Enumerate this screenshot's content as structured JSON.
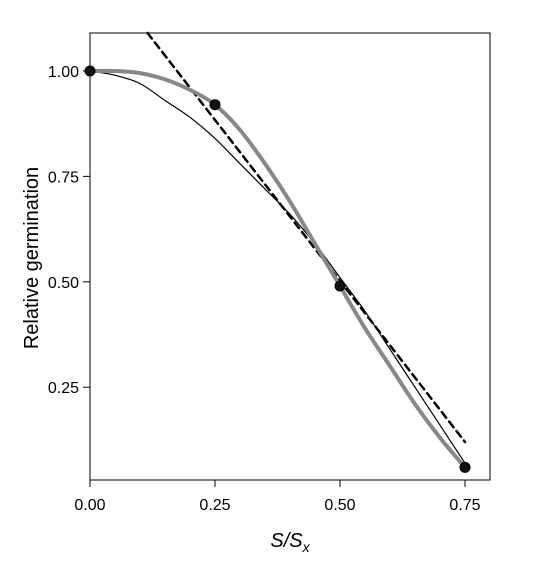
{
  "chart_data": {
    "type": "line",
    "xlabel": "S/S",
    "xlabel_subscript": "x",
    "ylabel": "Relative germination",
    "xlim": [
      0,
      0.8
    ],
    "ylim": [
      0.03,
      1.09
    ],
    "xticks": [
      0.0,
      0.25,
      0.5,
      0.75
    ],
    "xtick_labels": [
      "0.00",
      "0.25",
      "0.50",
      "0.75"
    ],
    "yticks": [
      0.25,
      0.5,
      0.75,
      1.0
    ],
    "ytick_labels": [
      "0.25",
      "0.50",
      "0.75",
      "1.00"
    ],
    "grid": false,
    "points": {
      "x": [
        0.0,
        0.25,
        0.5,
        0.75
      ],
      "y": [
        1.0,
        0.92,
        0.49,
        0.06
      ]
    },
    "series": [
      {
        "style": "gray-thick",
        "color": "#888888",
        "x": [
          0.0,
          0.05,
          0.1,
          0.15,
          0.2,
          0.25,
          0.3,
          0.35,
          0.4,
          0.45,
          0.5,
          0.55,
          0.6,
          0.65,
          0.7,
          0.75
        ],
        "y": [
          1.0,
          1.0,
          0.995,
          0.98,
          0.955,
          0.92,
          0.86,
          0.78,
          0.69,
          0.59,
          0.49,
          0.39,
          0.3,
          0.21,
          0.13,
          0.06
        ]
      },
      {
        "style": "black-thin",
        "color": "#000000",
        "x": [
          0.0,
          0.05,
          0.1,
          0.15,
          0.2,
          0.25,
          0.3,
          0.35,
          0.4,
          0.45,
          0.5,
          0.55,
          0.6,
          0.65,
          0.7,
          0.75
        ],
        "y": [
          1.0,
          0.99,
          0.97,
          0.93,
          0.89,
          0.84,
          0.78,
          0.72,
          0.66,
          0.59,
          0.51,
          0.43,
          0.34,
          0.25,
          0.16,
          0.07
        ]
      },
      {
        "style": "dashed",
        "color": "#000000",
        "x": [
          0.115,
          0.75
        ],
        "y": [
          1.09,
          0.12
        ]
      }
    ]
  }
}
